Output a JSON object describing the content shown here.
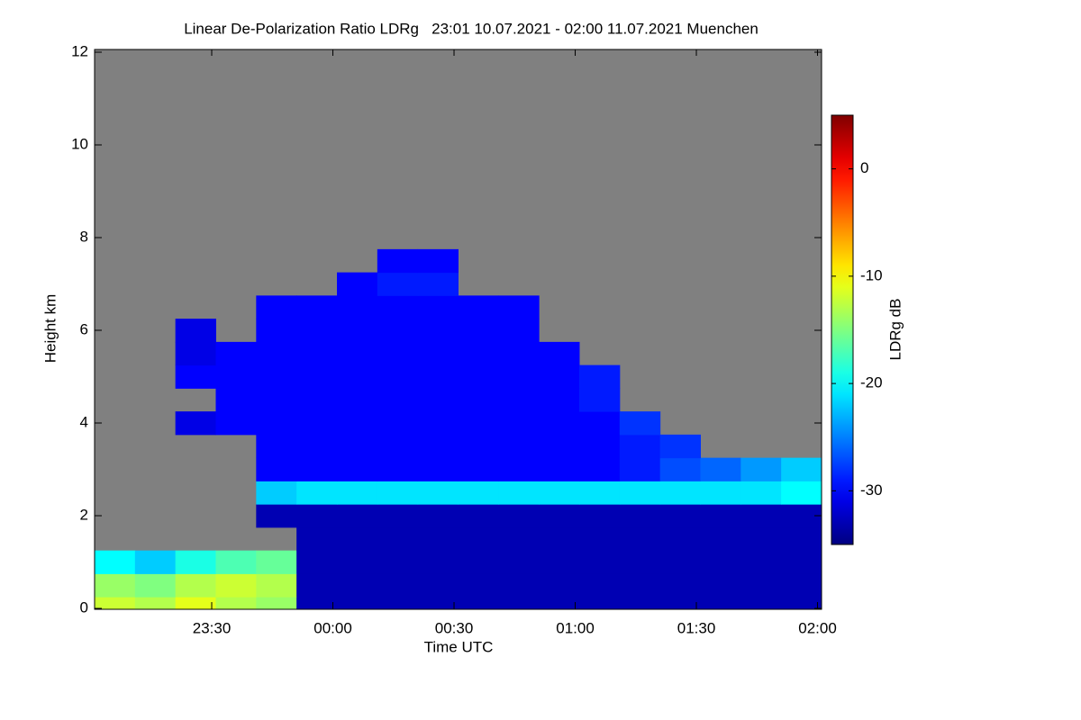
{
  "chart_data": {
    "type": "heatmap",
    "title": "Linear De-Polarization Ratio LDRg   23:01 10.07.2021 - 02:00 11.07.2021 Muenchen",
    "x_label": "Time UTC",
    "y_label": "Height km",
    "colorbar_label": "LDRg dB",
    "colormap": "jet",
    "missing_color": "#808080",
    "xlim": [
      -59,
      121
    ],
    "xticks": [
      {
        "value": -30,
        "label": "23:30"
      },
      {
        "value": 0,
        "label": "00:00"
      },
      {
        "value": 30,
        "label": "00:30"
      },
      {
        "value": 60,
        "label": "01:00"
      },
      {
        "value": 90,
        "label": "01:30"
      },
      {
        "value": 120,
        "label": "02:00"
      }
    ],
    "ylim": [
      0,
      12
    ],
    "yticks": [
      0,
      2,
      4,
      6,
      8,
      10,
      12
    ],
    "clim": [
      -35,
      5
    ],
    "cticks": [
      0,
      -10,
      -20,
      -30
    ],
    "x": [
      -54,
      -44,
      -34,
      -24,
      -14,
      -4,
      6,
      16,
      26,
      36,
      46,
      56,
      66,
      76,
      86,
      96,
      106,
      116
    ],
    "y": [
      0,
      0.5,
      1,
      1.5,
      2,
      2.5,
      3,
      3.5,
      4,
      4.5,
      5,
      5.5,
      6,
      6.5,
      7,
      7.5,
      8,
      8.5,
      9,
      9.5,
      10,
      10.5,
      11,
      11.5,
      12
    ],
    "z": [
      [
        -12,
        -13,
        -11,
        -13,
        -14,
        -33,
        -33,
        -33,
        -33,
        -33,
        -33,
        -33,
        -33,
        -33,
        -33,
        -33,
        -33,
        -33
      ],
      [
        -14,
        -15,
        -13,
        -12,
        -13,
        -33,
        -33,
        -33,
        -33,
        -33,
        -33,
        -33,
        -33,
        -33,
        -33,
        -33,
        -33,
        -33
      ],
      [
        -20,
        -22,
        -19,
        -17,
        -16,
        -33,
        -33,
        -33,
        -33,
        -33,
        -33,
        -33,
        -33,
        -33,
        -33,
        -33,
        -33,
        -33
      ],
      [
        null,
        null,
        null,
        null,
        null,
        -33,
        -33,
        -33,
        -33,
        -33,
        -33,
        -33,
        -33,
        -33,
        -33,
        -33,
        -33,
        -33
      ],
      [
        null,
        null,
        null,
        null,
        -33,
        -33,
        -33,
        -33,
        -33,
        -33,
        -33,
        -33,
        -33,
        -33,
        -33,
        -33,
        -33,
        -33
      ],
      [
        null,
        null,
        null,
        null,
        -22,
        -21,
        -21,
        -21,
        -21,
        -21,
        -21,
        -21,
        -21,
        -21,
        -21,
        -21,
        -21,
        -20
      ],
      [
        null,
        null,
        null,
        null,
        -30,
        -30,
        -30,
        -30,
        -30,
        -30,
        -30,
        -30,
        -30,
        -29,
        -27,
        -26,
        -24,
        -22
      ],
      [
        null,
        null,
        null,
        null,
        -30,
        -30,
        -30,
        -30,
        -30,
        -30,
        -30,
        -30,
        -30,
        -29,
        -28,
        null,
        null,
        null
      ],
      [
        null,
        null,
        -31,
        -30,
        -30,
        -30,
        -30,
        -30,
        -30,
        -30,
        -30,
        -30,
        -30,
        -28,
        null,
        null,
        null,
        null
      ],
      [
        null,
        null,
        null,
        -30,
        -30,
        -30,
        -30,
        -30,
        -30,
        -30,
        -30,
        -30,
        -29,
        null,
        null,
        null,
        null,
        null
      ],
      [
        null,
        null,
        -30,
        -30,
        -30,
        -30,
        -30,
        -30,
        -30,
        -30,
        -30,
        -30,
        -29,
        null,
        null,
        null,
        null,
        null
      ],
      [
        null,
        null,
        -31,
        -30,
        -30,
        -30,
        -30,
        -30,
        -30,
        -30,
        -30,
        -30,
        null,
        null,
        null,
        null,
        null,
        null
      ],
      [
        null,
        null,
        -31,
        null,
        -30,
        -30,
        -30,
        -30,
        -30,
        -30,
        -30,
        null,
        null,
        null,
        null,
        null,
        null,
        null
      ],
      [
        null,
        null,
        null,
        null,
        -30,
        -30,
        -30,
        -30,
        -30,
        -30,
        -30,
        null,
        null,
        null,
        null,
        null,
        null,
        null
      ],
      [
        null,
        null,
        null,
        null,
        null,
        null,
        -30,
        -29,
        -29,
        null,
        null,
        null,
        null,
        null,
        null,
        null,
        null,
        null
      ],
      [
        null,
        null,
        null,
        null,
        null,
        null,
        null,
        -30,
        -30,
        null,
        null,
        null,
        null,
        null,
        null,
        null,
        null,
        null
      ],
      [
        null,
        null,
        null,
        null,
        null,
        null,
        null,
        null,
        null,
        null,
        null,
        null,
        null,
        null,
        null,
        null,
        null,
        null
      ],
      [
        null,
        null,
        null,
        null,
        null,
        null,
        null,
        null,
        null,
        null,
        null,
        null,
        null,
        null,
        null,
        null,
        null,
        null
      ],
      [
        null,
        null,
        null,
        null,
        null,
        null,
        null,
        null,
        null,
        null,
        null,
        null,
        null,
        null,
        null,
        null,
        null,
        null
      ],
      [
        null,
        null,
        null,
        null,
        null,
        null,
        null,
        null,
        null,
        null,
        null,
        null,
        null,
        null,
        null,
        null,
        null,
        null
      ],
      [
        null,
        null,
        null,
        null,
        null,
        null,
        null,
        null,
        null,
        null,
        null,
        null,
        null,
        null,
        null,
        null,
        null,
        null
      ],
      [
        null,
        null,
        null,
        null,
        null,
        null,
        null,
        null,
        null,
        null,
        null,
        null,
        null,
        null,
        null,
        null,
        null,
        null
      ],
      [
        null,
        null,
        null,
        null,
        null,
        null,
        null,
        null,
        null,
        null,
        null,
        null,
        null,
        null,
        null,
        null,
        null,
        null
      ],
      [
        null,
        null,
        null,
        null,
        null,
        null,
        null,
        null,
        null,
        null,
        null,
        null,
        null,
        null,
        null,
        null,
        null,
        null
      ],
      [
        null,
        null,
        null,
        null,
        null,
        null,
        null,
        null,
        null,
        null,
        null,
        null,
        null,
        null,
        null,
        null,
        null,
        null
      ]
    ]
  }
}
